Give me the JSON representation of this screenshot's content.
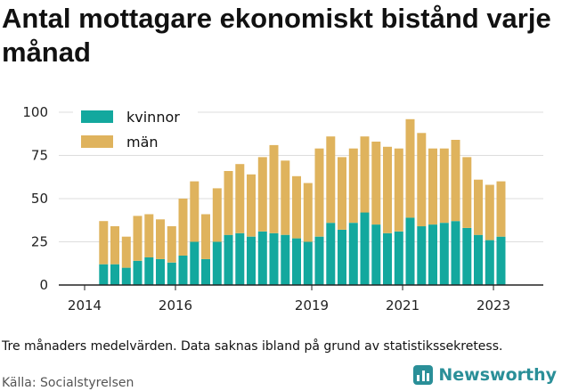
{
  "title": "Antal mottagare ekonomiskt bistånd varje månad",
  "note": "Tre månaders medelvärden. Data saknas ibland på grund av statistikssekretess.",
  "source": "Källa: Socialstyrelsen",
  "brand": "Newsworthy",
  "colors": {
    "kvinnor": "#13a89e",
    "man": "#dfb35d",
    "axis": "#222222",
    "grid": "#dddddd"
  },
  "chart_data": {
    "type": "bar",
    "stacked": true,
    "x_unit": "month",
    "categories": [
      "2014-06",
      "2014-09",
      "2014-12",
      "2015-03",
      "2015-06",
      "2015-09",
      "2015-12",
      "2016-03",
      "2016-06",
      "2016-09",
      "2016-12",
      "2017-03",
      "2017-06",
      "2017-09",
      "2017-12",
      "2018-03",
      "2018-06",
      "2018-09",
      "2018-12",
      "2019-03",
      "2019-06",
      "2019-09",
      "2019-12",
      "2020-03",
      "2020-06",
      "2020-09",
      "2020-12",
      "2021-03",
      "2021-06",
      "2021-09",
      "2021-12",
      "2022-03",
      "2022-06",
      "2022-09",
      "2022-12",
      "2023-03"
    ],
    "series": [
      {
        "name": "kvinnor",
        "values": [
          12,
          12,
          10,
          14,
          16,
          15,
          13,
          17,
          25,
          15,
          25,
          29,
          30,
          28,
          31,
          30,
          29,
          27,
          25,
          28,
          36,
          32,
          36,
          42,
          35,
          30,
          31,
          39,
          34,
          35,
          36,
          37,
          33,
          29,
          26,
          28
        ]
      },
      {
        "name": "män",
        "values": [
          25,
          22,
          18,
          26,
          25,
          23,
          21,
          33,
          35,
          26,
          31,
          37,
          40,
          36,
          43,
          51,
          43,
          36,
          34,
          51,
          50,
          42,
          43,
          44,
          48,
          50,
          48,
          57,
          54,
          44,
          43,
          47,
          41,
          32,
          32,
          32
        ]
      }
    ],
    "ylim": [
      0,
      100
    ],
    "y_ticks": [
      0,
      25,
      50,
      75,
      100
    ],
    "x_ticks": [
      "2014",
      "2016",
      "2019",
      "2021",
      "2023"
    ],
    "legend": "top-left",
    "grid": "horizontal"
  }
}
